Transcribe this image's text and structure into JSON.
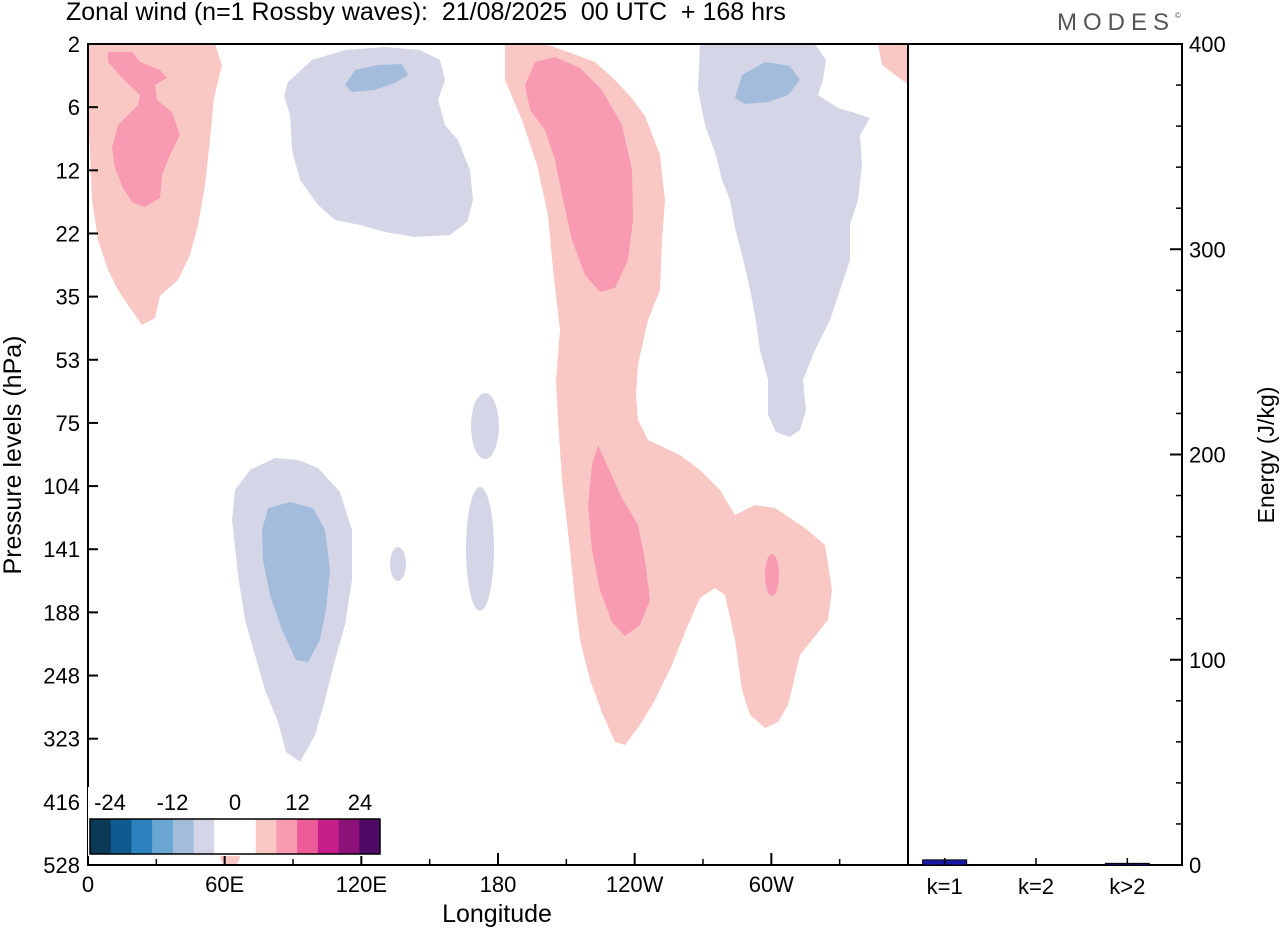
{
  "title": "Zonal wind (n=1 Rossby waves):  21/08/2025  00 UTC  + 168 hrs",
  "logo": {
    "text": "MODES",
    "mark": "©"
  },
  "chart_data": [
    {
      "type": "heatmap",
      "title": "Zonal wind (n=1 Rossby waves)",
      "xlabel": "Longitude",
      "ylabel": "Pressure levels (hPa)",
      "x_ticks": [
        {
          "lon": 0,
          "label": "0"
        },
        {
          "lon": 60,
          "label": "60E"
        },
        {
          "lon": 120,
          "label": "120E"
        },
        {
          "lon": 180,
          "label": "180"
        },
        {
          "lon": 240,
          "label": "120W"
        },
        {
          "lon": 300,
          "label": "60W"
        }
      ],
      "x_minor_ticks": [
        30,
        90,
        150,
        210,
        270,
        330
      ],
      "xlim": [
        0,
        360
      ],
      "y_levels": [
        "2",
        "6",
        "12",
        "22",
        "35",
        "53",
        "75",
        "104",
        "141",
        "188",
        "248",
        "323",
        "416",
        "528"
      ],
      "colorbar": {
        "labels": [
          "-24",
          "-12",
          "0",
          "12",
          "24"
        ],
        "colors": [
          "#0b3a56",
          "#0e5a8e",
          "#2c82bd",
          "#6aa6d2",
          "#a3bcdc",
          "#d4d6e7",
          "#ffffff",
          "#ffffff",
          "#f9c8c4",
          "#f89ab2",
          "#ec5c98",
          "#c81e8c",
          "#8c1278",
          "#4e0a66"
        ]
      },
      "regions": [
        {
          "sign": "positive",
          "level": 4,
          "location": "0-55E, 2-40 hPa"
        },
        {
          "sign": "positive",
          "level": 12,
          "location": "10-40E, 2-20 hPa"
        },
        {
          "sign": "negative",
          "level": -4,
          "location": "85-170E, 2-22 hPa"
        },
        {
          "sign": "negative",
          "level": -12,
          "location": "115-140E, 3-5 hPa"
        },
        {
          "sign": "positive",
          "level": 4,
          "location": "180-270W, 2-323 hPa"
        },
        {
          "sign": "positive",
          "level": 12,
          "location": "190-240W, 2-35 hPa"
        },
        {
          "sign": "positive",
          "level": 12,
          "location": "220-245W, 90-200 hPa"
        },
        {
          "sign": "positive",
          "level": 12,
          "location": "298-303W, 140-180 hPa"
        },
        {
          "sign": "negative",
          "level": -4,
          "location": "265-340W, 2-75 hPa"
        },
        {
          "sign": "negative",
          "level": -12,
          "location": "285-310W, 3-6 hPa"
        },
        {
          "sign": "negative",
          "level": -4,
          "location": "60-120E, 96-323 hPa"
        },
        {
          "sign": "negative",
          "level": -12,
          "location": "75-105E, 110-248 hPa"
        },
        {
          "sign": "negative",
          "level": -4,
          "location": "170-180E, 65-90 hPa"
        },
        {
          "sign": "negative",
          "level": -4,
          "location": "165-178E, 110-188 hPa"
        },
        {
          "sign": "negative",
          "level": -4,
          "location": "135-138E, 130-160 hPa"
        }
      ]
    },
    {
      "type": "bar",
      "ylabel": "Energy (J/kg)",
      "categories": [
        "k=1",
        "k=2",
        "k>2"
      ],
      "values": [
        2.5,
        0,
        0.8
      ],
      "ylim": [
        0,
        400
      ],
      "y_ticks": [
        "0",
        "100",
        "200",
        "300",
        "400"
      ],
      "colors": [
        "#1a1aa8",
        "#1a1aa8",
        "#1a1aa8"
      ]
    }
  ]
}
